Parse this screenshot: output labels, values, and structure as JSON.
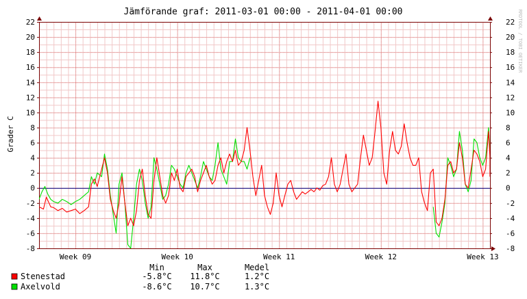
{
  "chart_data": {
    "type": "line",
    "title": "Jämförande graf: 2011-03-01 00:00 - 2011-04-01 00:00",
    "ylabel": "Grader C",
    "watermark": "RRDTOOL / TOBI OETIKER",
    "ylim": [
      -8,
      22
    ],
    "y_ticks": [
      "22",
      "20",
      "18",
      "16",
      "14",
      "12",
      "10",
      "8",
      "6",
      "4",
      "2",
      "0",
      "-2",
      "-4",
      "-6",
      "-8"
    ],
    "x_range_days": [
      0,
      31
    ],
    "x_ticks": [
      {
        "label": "Week 09",
        "day": 2.5
      },
      {
        "label": "Week 10",
        "day": 9.5
      },
      {
        "label": "Week 11",
        "day": 16.5
      },
      {
        "label": "Week 12",
        "day": 23.5
      },
      {
        "label": "Week 13",
        "day": 30.5
      }
    ],
    "grid": true,
    "colors": {
      "background": "#ffffff",
      "plot_bg": "#ffffff",
      "minor_grid": "#f1c8c8",
      "major_grid": "#e08585",
      "axis": "#7a0000",
      "zero_line": "#000080",
      "text": "#000000"
    },
    "legend_header": {
      "min": "Min",
      "max": "Max",
      "mean": "Medel"
    },
    "series": [
      {
        "name": "Stenestad",
        "color": "#ff0000",
        "min": "-5.8°C",
        "max": "11.8°C",
        "mean": "1.2°C",
        "points": [
          [
            0.0,
            -2.5
          ],
          [
            0.3,
            -2.8
          ],
          [
            0.5,
            -1.2
          ],
          [
            0.8,
            -2.5
          ],
          [
            1.0,
            -2.6
          ],
          [
            1.3,
            -3.0
          ],
          [
            1.6,
            -2.7
          ],
          [
            1.9,
            -3.2
          ],
          [
            2.2,
            -3.0
          ],
          [
            2.5,
            -2.8
          ],
          [
            2.8,
            -3.4
          ],
          [
            3.1,
            -3.0
          ],
          [
            3.4,
            -2.5
          ],
          [
            3.6,
            0.5
          ],
          [
            3.8,
            1.2
          ],
          [
            4.0,
            0.2
          ],
          [
            4.3,
            2.5
          ],
          [
            4.5,
            4.0
          ],
          [
            4.7,
            2.0
          ],
          [
            4.9,
            -1.5
          ],
          [
            5.1,
            -3.0
          ],
          [
            5.3,
            -4.0
          ],
          [
            5.5,
            -2.0
          ],
          [
            5.7,
            1.5
          ],
          [
            5.9,
            -2.0
          ],
          [
            6.1,
            -5.0
          ],
          [
            6.3,
            -4.0
          ],
          [
            6.5,
            -5.0
          ],
          [
            6.7,
            -3.0
          ],
          [
            6.9,
            1.0
          ],
          [
            7.1,
            2.5
          ],
          [
            7.3,
            -1.0
          ],
          [
            7.5,
            -3.5
          ],
          [
            7.7,
            -4.0
          ],
          [
            7.9,
            1.0
          ],
          [
            8.1,
            4.0
          ],
          [
            8.3,
            1.5
          ],
          [
            8.5,
            -1.0
          ],
          [
            8.7,
            -2.0
          ],
          [
            8.9,
            -1.0
          ],
          [
            9.1,
            2.0
          ],
          [
            9.3,
            1.0
          ],
          [
            9.5,
            2.5
          ],
          [
            9.7,
            0.0
          ],
          [
            9.9,
            -0.5
          ],
          [
            10.1,
            1.5
          ],
          [
            10.3,
            2.0
          ],
          [
            10.5,
            2.5
          ],
          [
            10.7,
            1.5
          ],
          [
            10.9,
            -0.5
          ],
          [
            11.1,
            1.0
          ],
          [
            11.3,
            2.0
          ],
          [
            11.5,
            3.0
          ],
          [
            11.7,
            1.5
          ],
          [
            11.9,
            0.5
          ],
          [
            12.1,
            1.0
          ],
          [
            12.3,
            3.0
          ],
          [
            12.5,
            4.0
          ],
          [
            12.7,
            2.0
          ],
          [
            12.9,
            3.5
          ],
          [
            13.1,
            4.5
          ],
          [
            13.3,
            3.5
          ],
          [
            13.5,
            5.0
          ],
          [
            13.7,
            3.0
          ],
          [
            13.9,
            3.5
          ],
          [
            14.1,
            5.0
          ],
          [
            14.3,
            8.0
          ],
          [
            14.5,
            5.0
          ],
          [
            14.7,
            1.5
          ],
          [
            14.9,
            -1.0
          ],
          [
            15.1,
            1.0
          ],
          [
            15.3,
            3.0
          ],
          [
            15.5,
            -1.0
          ],
          [
            15.7,
            -2.5
          ],
          [
            15.9,
            -3.5
          ],
          [
            16.1,
            -2.0
          ],
          [
            16.3,
            2.0
          ],
          [
            16.5,
            -1.0
          ],
          [
            16.7,
            -2.5
          ],
          [
            16.9,
            -1.0
          ],
          [
            17.1,
            0.5
          ],
          [
            17.3,
            1.0
          ],
          [
            17.5,
            -0.5
          ],
          [
            17.7,
            -1.5
          ],
          [
            17.9,
            -1.0
          ],
          [
            18.1,
            -0.5
          ],
          [
            18.3,
            -0.8
          ],
          [
            18.5,
            -0.5
          ],
          [
            18.7,
            -0.2
          ],
          [
            18.9,
            -0.5
          ],
          [
            19.1,
            0.0
          ],
          [
            19.3,
            -0.3
          ],
          [
            19.5,
            0.3
          ],
          [
            19.7,
            0.5
          ],
          [
            19.9,
            1.5
          ],
          [
            20.1,
            4.0
          ],
          [
            20.3,
            0.5
          ],
          [
            20.5,
            -0.5
          ],
          [
            20.7,
            0.5
          ],
          [
            20.9,
            2.5
          ],
          [
            21.1,
            4.5
          ],
          [
            21.3,
            0.5
          ],
          [
            21.5,
            -0.5
          ],
          [
            21.7,
            0.0
          ],
          [
            21.9,
            0.5
          ],
          [
            22.1,
            4.0
          ],
          [
            22.3,
            7.0
          ],
          [
            22.5,
            5.0
          ],
          [
            22.7,
            3.0
          ],
          [
            22.9,
            4.0
          ],
          [
            23.1,
            7.5
          ],
          [
            23.3,
            11.5
          ],
          [
            23.5,
            8.0
          ],
          [
            23.7,
            2.0
          ],
          [
            23.9,
            0.5
          ],
          [
            24.1,
            5.0
          ],
          [
            24.3,
            7.5
          ],
          [
            24.5,
            5.0
          ],
          [
            24.7,
            4.5
          ],
          [
            24.9,
            5.5
          ],
          [
            25.1,
            8.5
          ],
          [
            25.3,
            6.0
          ],
          [
            25.5,
            4.0
          ],
          [
            25.7,
            3.0
          ],
          [
            25.9,
            3.0
          ],
          [
            26.1,
            4.0
          ],
          [
            26.3,
            -0.5
          ],
          [
            26.5,
            -2.0
          ],
          [
            26.7,
            -3.0
          ],
          [
            26.9,
            2.0
          ],
          [
            27.1,
            2.5
          ],
          [
            27.3,
            -4.5
          ],
          [
            27.5,
            -5.0
          ],
          [
            27.7,
            -4.0
          ],
          [
            27.9,
            -1.5
          ],
          [
            28.1,
            3.0
          ],
          [
            28.3,
            3.5
          ],
          [
            28.5,
            2.0
          ],
          [
            28.7,
            2.5
          ],
          [
            28.9,
            6.0
          ],
          [
            29.1,
            4.0
          ],
          [
            29.3,
            0.5
          ],
          [
            29.5,
            0.0
          ],
          [
            29.7,
            2.5
          ],
          [
            29.9,
            5.0
          ],
          [
            30.1,
            4.5
          ],
          [
            30.3,
            3.5
          ],
          [
            30.5,
            1.5
          ],
          [
            30.7,
            2.5
          ],
          [
            30.9,
            7.5
          ],
          [
            31.1,
            4.0
          ],
          [
            31.3,
            1.5
          ],
          [
            31.5,
            1.0
          ],
          [
            31.7,
            3.0
          ],
          [
            31.9,
            4.5
          ],
          [
            32.1,
            5.5
          ]
        ]
      },
      {
        "name": "Axelvold",
        "color": "#00e000",
        "min": "-8.6°C",
        "max": "10.7°C",
        "mean": "1.3°C",
        "points": [
          [
            0.0,
            -1.5
          ],
          [
            0.2,
            -0.5
          ],
          [
            0.4,
            0.2
          ],
          [
            0.6,
            -0.8
          ],
          [
            0.8,
            -1.5
          ],
          [
            1.0,
            -1.8
          ],
          [
            1.3,
            -2.0
          ],
          [
            1.6,
            -1.5
          ],
          [
            1.9,
            -1.8
          ],
          [
            2.2,
            -2.2
          ],
          [
            2.5,
            -1.8
          ],
          [
            2.8,
            -1.5
          ],
          [
            3.1,
            -1.0
          ],
          [
            3.4,
            -0.5
          ],
          [
            3.6,
            1.5
          ],
          [
            3.8,
            0.5
          ],
          [
            4.0,
            2.0
          ],
          [
            4.3,
            1.5
          ],
          [
            4.5,
            4.5
          ],
          [
            4.7,
            2.5
          ],
          [
            4.9,
            -1.0
          ],
          [
            5.1,
            -3.5
          ],
          [
            5.3,
            -6.0
          ],
          [
            5.5,
            0.5
          ],
          [
            5.7,
            2.0
          ],
          [
            5.9,
            -2.0
          ],
          [
            6.1,
            -7.5
          ],
          [
            6.3,
            -8.0
          ],
          [
            6.5,
            -4.0
          ],
          [
            6.7,
            0.5
          ],
          [
            6.9,
            2.5
          ],
          [
            7.1,
            1.0
          ],
          [
            7.3,
            -2.0
          ],
          [
            7.5,
            -4.0
          ],
          [
            7.7,
            -2.5
          ],
          [
            7.9,
            4.0
          ],
          [
            8.1,
            2.5
          ],
          [
            8.3,
            0.5
          ],
          [
            8.5,
            -1.5
          ],
          [
            8.7,
            -1.0
          ],
          [
            8.9,
            0.5
          ],
          [
            9.1,
            3.0
          ],
          [
            9.3,
            2.5
          ],
          [
            9.5,
            1.5
          ],
          [
            9.7,
            0.5
          ],
          [
            9.9,
            0.0
          ],
          [
            10.1,
            2.0
          ],
          [
            10.3,
            3.0
          ],
          [
            10.5,
            2.0
          ],
          [
            10.7,
            1.0
          ],
          [
            10.9,
            0.0
          ],
          [
            11.1,
            1.5
          ],
          [
            11.3,
            3.5
          ],
          [
            11.5,
            2.5
          ],
          [
            11.7,
            1.5
          ],
          [
            11.9,
            1.0
          ],
          [
            12.1,
            3.0
          ],
          [
            12.3,
            6.0
          ],
          [
            12.5,
            2.5
          ],
          [
            12.7,
            1.5
          ],
          [
            12.9,
            0.5
          ],
          [
            13.1,
            3.5
          ],
          [
            13.3,
            3.5
          ],
          [
            13.5,
            6.5
          ],
          [
            13.7,
            4.0
          ],
          [
            13.9,
            3.5
          ],
          [
            14.1,
            3.5
          ],
          [
            14.3,
            2.5
          ],
          [
            14.5,
            4.0
          ],
          [
            27.1,
            -2.5
          ],
          [
            27.3,
            -6.0
          ],
          [
            27.5,
            -6.5
          ],
          [
            27.7,
            -4.5
          ],
          [
            27.9,
            -2.0
          ],
          [
            28.1,
            4.0
          ],
          [
            28.3,
            3.0
          ],
          [
            28.5,
            1.5
          ],
          [
            28.7,
            2.5
          ],
          [
            28.9,
            7.5
          ],
          [
            29.1,
            5.0
          ],
          [
            29.3,
            0.5
          ],
          [
            29.5,
            -0.5
          ],
          [
            29.7,
            1.0
          ],
          [
            29.9,
            6.5
          ],
          [
            30.1,
            6.0
          ],
          [
            30.3,
            4.0
          ],
          [
            30.5,
            3.0
          ],
          [
            30.7,
            4.0
          ],
          [
            30.9,
            8.0
          ],
          [
            31.1,
            5.0
          ],
          [
            31.3,
            2.5
          ],
          [
            31.5,
            1.5
          ],
          [
            31.7,
            3.5
          ],
          [
            31.9,
            5.5
          ],
          [
            32.1,
            6.0
          ]
        ]
      }
    ]
  }
}
